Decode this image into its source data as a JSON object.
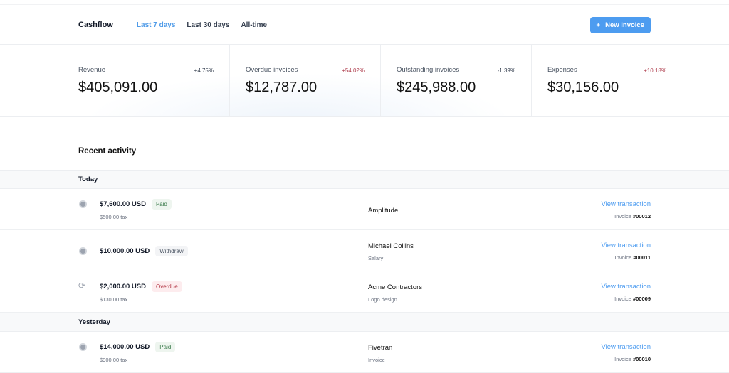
{
  "header": {
    "title": "Cashflow",
    "tabs": [
      {
        "label": "Last 7 days",
        "active": true
      },
      {
        "label": "Last 30 days"
      },
      {
        "label": "All-time"
      }
    ],
    "new_button": "New invoice",
    "accent": "#4d9cf0"
  },
  "stats": [
    {
      "label": "Revenue",
      "change": "+4.75%",
      "value": "$405,091.00",
      "negative": false
    },
    {
      "label": "Overdue invoices",
      "change": "+54.02%",
      "value": "$12,787.00",
      "negative": true
    },
    {
      "label": "Outstanding invoices",
      "change": "-1.39%",
      "value": "$245,988.00",
      "negative": false
    },
    {
      "label": "Expenses",
      "change": "+10.18%",
      "value": "$30,156.00",
      "negative": true
    }
  ],
  "activity": {
    "title": "Recent activity",
    "groups": [
      {
        "label": "Today",
        "rows": [
          {
            "icon": "circle-icon",
            "amount": "$7,600.00 USD",
            "status": "Paid",
            "tax": "$500.00 tax",
            "client": "Amplitude",
            "desc": "",
            "link": "View transaction",
            "invoice_prefix": "Invoice",
            "invoice": "#00012"
          },
          {
            "icon": "circle-icon",
            "amount": "$10,000.00 USD",
            "status": "Withdraw",
            "tax": "",
            "client": "Michael Collins",
            "desc": "Salary",
            "link": "View transaction",
            "invoice_prefix": "Invoice",
            "invoice": "#00011"
          },
          {
            "icon": "refresh-icon",
            "amount": "$2,000.00 USD",
            "status": "Overdue",
            "tax": "$130.00 tax",
            "client": "Acme Contractors",
            "desc": "Logo design",
            "link": "View transaction",
            "invoice_prefix": "Invoice",
            "invoice": "#00009"
          }
        ]
      },
      {
        "label": "Yesterday",
        "rows": [
          {
            "icon": "circle-icon",
            "amount": "$14,000.00 USD",
            "status": "Paid",
            "tax": "$900.00 tax",
            "client": "Fivetran",
            "desc": "Invoice",
            "link": "View transaction",
            "invoice_prefix": "Invoice",
            "invoice": "#00010"
          }
        ]
      }
    ]
  }
}
